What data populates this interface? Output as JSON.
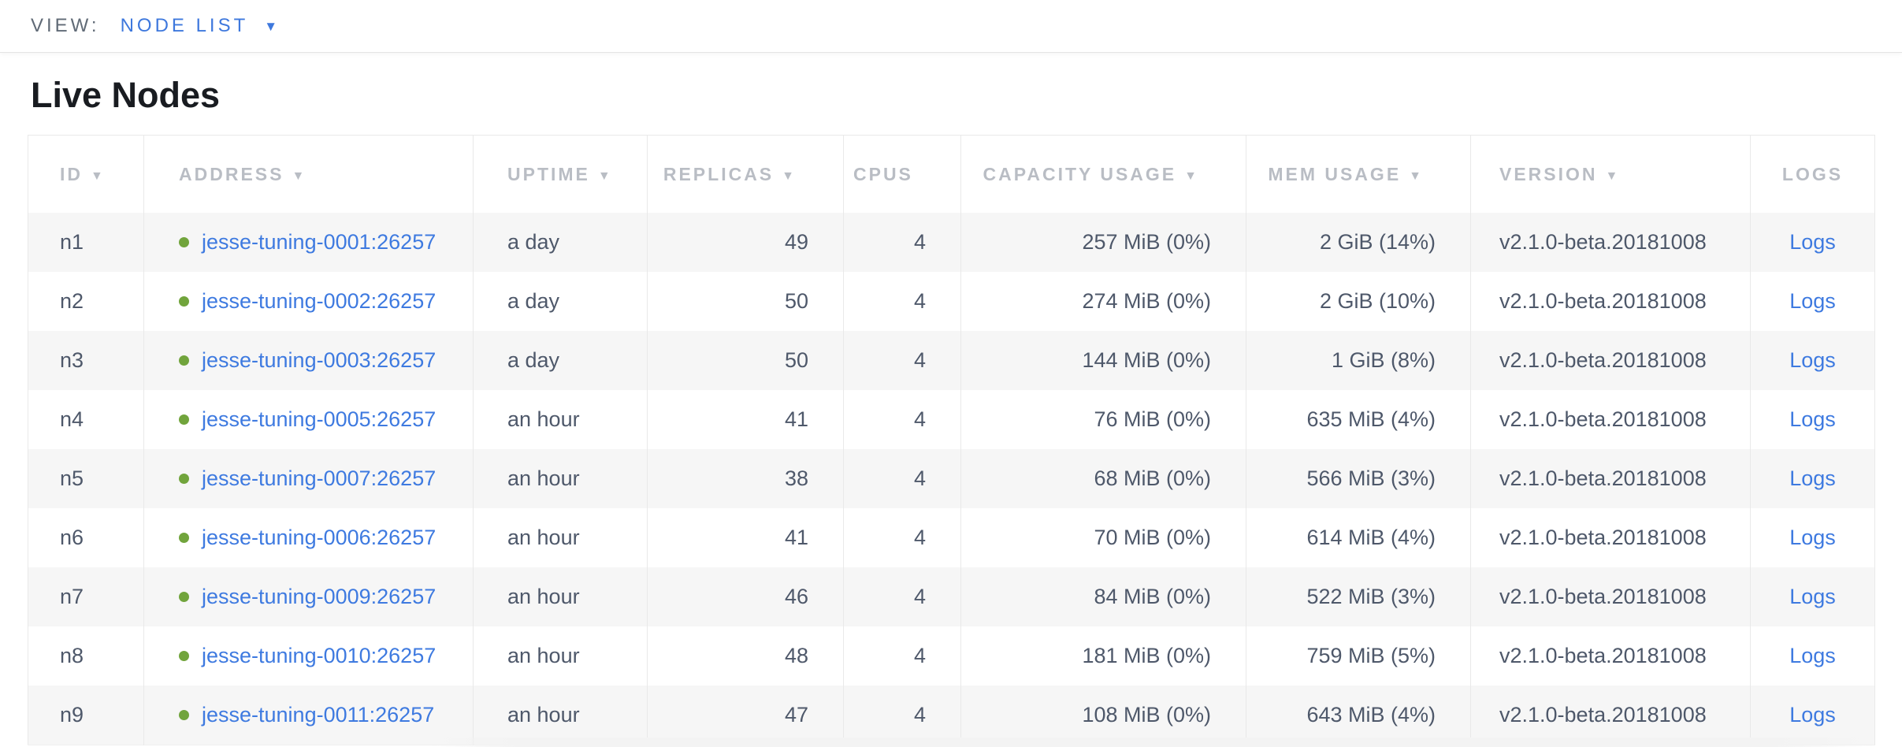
{
  "view_bar": {
    "label": "VIEW:",
    "selected": "NODE LIST",
    "caret": "▼"
  },
  "page": {
    "title": "Live Nodes"
  },
  "icons": {
    "sort_desc": "▼"
  },
  "colors": {
    "link_blue": "#3e7ae0",
    "live_dot_green": "#71a43c",
    "header_label_gray": "#b9bdc4",
    "cell_text": "#4e586a",
    "view_label_gray": "#606a76",
    "row_stripe": "#f6f6f6",
    "table_border": "#e9e9e9",
    "title_text": "#191c21"
  },
  "table": {
    "columns": [
      {
        "key": "id",
        "label": "ID",
        "sortable": true,
        "align": "left"
      },
      {
        "key": "address",
        "label": "ADDRESS",
        "sortable": true,
        "align": "left"
      },
      {
        "key": "uptime",
        "label": "UPTIME",
        "sortable": true,
        "align": "left"
      },
      {
        "key": "replicas",
        "label": "REPLICAS",
        "sortable": true,
        "align": "right"
      },
      {
        "key": "cpus",
        "label": "CPUS",
        "sortable": false,
        "align": "right"
      },
      {
        "key": "capacity_usage",
        "label": "CAPACITY USAGE",
        "sortable": true,
        "align": "right"
      },
      {
        "key": "mem_usage",
        "label": "MEM USAGE",
        "sortable": true,
        "align": "right"
      },
      {
        "key": "version",
        "label": "VERSION",
        "sortable": true,
        "align": "left"
      },
      {
        "key": "logs",
        "label": "LOGS",
        "sortable": false,
        "align": "center"
      }
    ],
    "rows": [
      {
        "id": "n1",
        "status": "live",
        "address": "jesse-tuning-0001:26257",
        "uptime": "a day",
        "replicas": "49",
        "cpus": "4",
        "capacity_usage": "257 MiB (0%)",
        "mem_usage": "2 GiB (14%)",
        "version": "v2.1.0-beta.20181008",
        "logs": "Logs"
      },
      {
        "id": "n2",
        "status": "live",
        "address": "jesse-tuning-0002:26257",
        "uptime": "a day",
        "replicas": "50",
        "cpus": "4",
        "capacity_usage": "274 MiB (0%)",
        "mem_usage": "2 GiB (10%)",
        "version": "v2.1.0-beta.20181008",
        "logs": "Logs"
      },
      {
        "id": "n3",
        "status": "live",
        "address": "jesse-tuning-0003:26257",
        "uptime": "a day",
        "replicas": "50",
        "cpus": "4",
        "capacity_usage": "144 MiB (0%)",
        "mem_usage": "1 GiB (8%)",
        "version": "v2.1.0-beta.20181008",
        "logs": "Logs"
      },
      {
        "id": "n4",
        "status": "live",
        "address": "jesse-tuning-0005:26257",
        "uptime": "an hour",
        "replicas": "41",
        "cpus": "4",
        "capacity_usage": "76 MiB (0%)",
        "mem_usage": "635 MiB (4%)",
        "version": "v2.1.0-beta.20181008",
        "logs": "Logs"
      },
      {
        "id": "n5",
        "status": "live",
        "address": "jesse-tuning-0007:26257",
        "uptime": "an hour",
        "replicas": "38",
        "cpus": "4",
        "capacity_usage": "68 MiB (0%)",
        "mem_usage": "566 MiB (3%)",
        "version": "v2.1.0-beta.20181008",
        "logs": "Logs"
      },
      {
        "id": "n6",
        "status": "live",
        "address": "jesse-tuning-0006:26257",
        "uptime": "an hour",
        "replicas": "41",
        "cpus": "4",
        "capacity_usage": "70 MiB (0%)",
        "mem_usage": "614 MiB (4%)",
        "version": "v2.1.0-beta.20181008",
        "logs": "Logs"
      },
      {
        "id": "n7",
        "status": "live",
        "address": "jesse-tuning-0009:26257",
        "uptime": "an hour",
        "replicas": "46",
        "cpus": "4",
        "capacity_usage": "84 MiB (0%)",
        "mem_usage": "522 MiB (3%)",
        "version": "v2.1.0-beta.20181008",
        "logs": "Logs"
      },
      {
        "id": "n8",
        "status": "live",
        "address": "jesse-tuning-0010:26257",
        "uptime": "an hour",
        "replicas": "48",
        "cpus": "4",
        "capacity_usage": "181 MiB (0%)",
        "mem_usage": "759 MiB (5%)",
        "version": "v2.1.0-beta.20181008",
        "logs": "Logs"
      },
      {
        "id": "n9",
        "status": "live",
        "address": "jesse-tuning-0011:26257",
        "uptime": "an hour",
        "replicas": "47",
        "cpus": "4",
        "capacity_usage": "108 MiB (0%)",
        "mem_usage": "643 MiB (4%)",
        "version": "v2.1.0-beta.20181008",
        "logs": "Logs"
      }
    ]
  }
}
